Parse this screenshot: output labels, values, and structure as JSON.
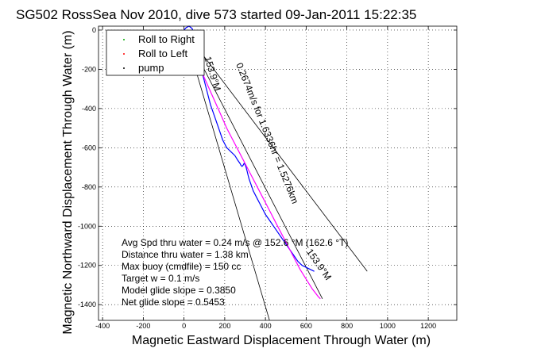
{
  "chart_data": {
    "type": "line",
    "title": "SG502 RossSea Nov 2010, dive 573 started 09-Jan-2011 15:22:35",
    "xlabel": "Magnetic Eastward Displacement Through Water (m)",
    "ylabel": "Magnetic Northward Displacement Through Water (m)",
    "xlim": [
      -420,
      1340
    ],
    "ylim": [
      -1480,
      20
    ],
    "xticks": [
      -400,
      -200,
      0,
      200,
      400,
      600,
      800,
      1000,
      1200
    ],
    "yticks": [
      0,
      -200,
      -400,
      -600,
      -800,
      -1000,
      -1200,
      -1400
    ],
    "grid": true,
    "legend": {
      "placement": "top-left",
      "entries": [
        {
          "label": "Roll to Right",
          "color": "#00aa00"
        },
        {
          "label": "Roll to Left",
          "color": "#ff0000"
        },
        {
          "label": "pump",
          "color": "#000000"
        }
      ]
    },
    "series": [
      {
        "color": "#0000ff",
        "x": [
          0,
          10,
          25,
          40,
          52,
          60,
          72,
          90,
          110,
          130,
          150,
          170,
          190,
          210,
          230,
          250,
          265,
          275,
          280,
          285,
          290,
          295,
          300,
          305,
          310,
          315,
          320,
          330,
          340,
          360,
          380,
          400,
          420,
          440,
          460,
          480,
          500,
          520,
          540,
          560,
          580,
          600,
          620,
          640
        ],
        "y": [
          0,
          12,
          20,
          8,
          -30,
          -80,
          -140,
          -220,
          -300,
          -380,
          -440,
          -500,
          -560,
          -600,
          -620,
          -640,
          -665,
          -680,
          -690,
          -695,
          -690,
          -680,
          -685,
          -700,
          -720,
          -740,
          -760,
          -790,
          -820,
          -860,
          -900,
          -940,
          -970,
          -1000,
          -1030,
          -1060,
          -1090,
          -1120,
          -1150,
          -1180,
          -1200,
          -1210,
          -1220,
          -1230
        ]
      },
      {
        "color": "#ff00ff",
        "x": [
          5,
          30,
          60,
          90,
          120,
          150,
          180,
          210,
          240,
          270,
          300,
          330,
          360,
          390,
          420,
          450,
          480,
          510,
          540,
          570,
          600,
          630,
          660,
          670
        ],
        "y": [
          -10,
          -80,
          -150,
          -220,
          -290,
          -360,
          -430,
          -500,
          -560,
          -620,
          -680,
          -740,
          -800,
          -860,
          -920,
          -980,
          -1040,
          -1100,
          -1160,
          -1220,
          -1270,
          -1320,
          -1360,
          -1370
        ]
      }
    ],
    "reference_lines": [
      {
        "name": "line-a",
        "x": [
          0,
          420
        ],
        "y": [
          0,
          -1480
        ]
      },
      {
        "name": "line-b",
        "x": [
          0,
          900
        ],
        "y": [
          0,
          -1230
        ]
      },
      {
        "name": "line-c",
        "x": [
          0,
          680
        ],
        "y": [
          0,
          -1370
        ]
      }
    ],
    "annotations": [
      {
        "text": "0.2674m/s for 1.6336hr = 1.5276km",
        "x": 255,
        "y": -175,
        "angle": 68
      },
      {
        "text": "153.9°M",
        "x": 100,
        "y": -140,
        "angle": 73
      },
      {
        "text": "153.9°M",
        "x": 600,
        "y": -1130,
        "angle": 55
      }
    ],
    "stats": [
      "Avg Spd thru water =  0.24 m/s @ 152.6    °M (162.6 °T)",
      "Distance thru water =  1.38 km",
      "Max buoy (cmdfile) = 150 cc",
      "Target w = 0.1 m/s",
      "Model glide slope = 0.3850",
      "Net glide slope = 0.5453"
    ]
  }
}
